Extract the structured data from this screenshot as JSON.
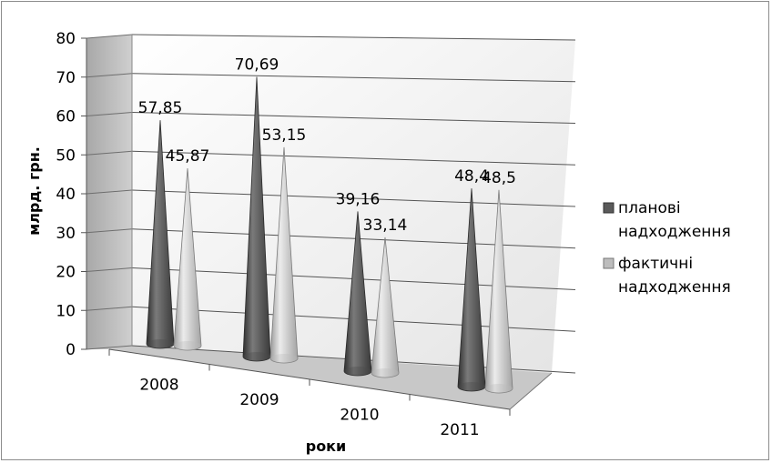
{
  "chart_data": {
    "type": "bar",
    "subtype": "3d-cone",
    "title": "",
    "xlabel": "роки",
    "ylabel": "млрд. грн.",
    "ylim": [
      0,
      80
    ],
    "yticks": [
      "0",
      "10",
      "20",
      "30",
      "40",
      "50",
      "60",
      "70",
      "80"
    ],
    "categories": [
      "2008",
      "2009",
      "2010",
      "2011"
    ],
    "series": [
      {
        "name": "планові надходження",
        "legend_lines": [
          "планові",
          "надходження"
        ],
        "values": [
          57.85,
          70.69,
          39.16,
          48.4
        ],
        "labels": [
          "57,85",
          "70,69",
          "39,16",
          "48,4"
        ],
        "color": "#5a5a5a"
      },
      {
        "name": "фактичні надходження",
        "legend_lines": [
          "фактичні",
          "надходження"
        ],
        "values": [
          45.87,
          53.15,
          33.14,
          48.5
        ],
        "labels": [
          "45,87",
          "53,15",
          "33,14",
          "48,5"
        ],
        "color": "#bdbdbd"
      }
    ],
    "grid": true,
    "legend_position": "right"
  }
}
